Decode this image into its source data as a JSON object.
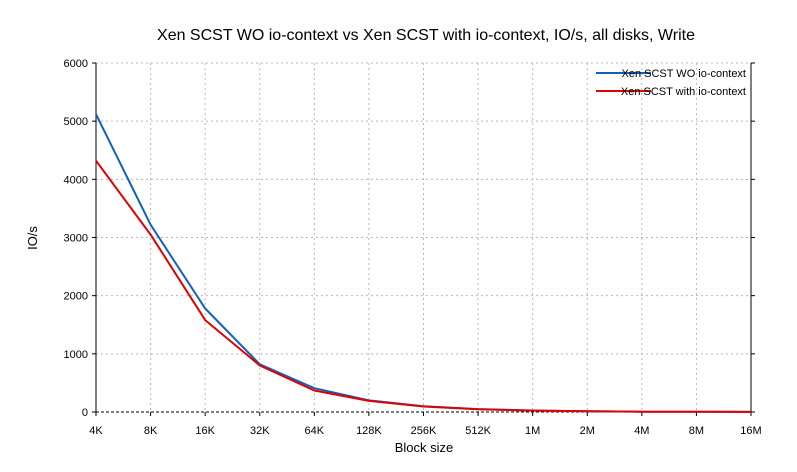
{
  "chart_data": {
    "type": "line",
    "title": "Xen SCST WO io-context vs Xen SCST with io-context, IO/s, all disks, Write",
    "xlabel": "Block size",
    "ylabel": "IO/s",
    "categories": [
      "4K",
      "8K",
      "16K",
      "32K",
      "64K",
      "128K",
      "256K",
      "512K",
      "1M",
      "2M",
      "4M",
      "8M",
      "16M"
    ],
    "ylim": [
      0,
      6000
    ],
    "yticks": [
      0,
      1000,
      2000,
      3000,
      4000,
      5000,
      6000
    ],
    "grid": true,
    "legend_position": "top-right",
    "series": [
      {
        "name": "Xen SCST WO io-context",
        "color": "#1060c0",
        "values": [
          5120,
          3220,
          1780,
          820,
          410,
          200,
          100,
          50,
          25,
          12,
          6,
          3,
          2
        ]
      },
      {
        "name": "Xen SCST with io-context",
        "color": "#e00000",
        "values": [
          4320,
          3050,
          1580,
          800,
          370,
          190,
          95,
          48,
          24,
          12,
          6,
          3,
          2
        ]
      }
    ]
  }
}
